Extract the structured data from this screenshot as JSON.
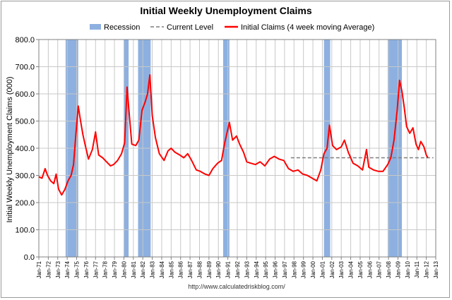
{
  "chart_data": {
    "type": "line",
    "title": "Initial Weekly Unemployment Claims",
    "ylabel": "Initial Weekly Unemployment Claims (000)",
    "xlabel": "",
    "ylim": [
      0,
      800
    ],
    "xlim": [
      "Jan-71",
      "Jan-13"
    ],
    "y_ticks": [
      "0.0",
      "100.0",
      "200.0",
      "300.0",
      "400.0",
      "500.0",
      "600.0",
      "700.0",
      "800.0"
    ],
    "x_ticks": [
      "Jan-71",
      "Jan-72",
      "Jan-73",
      "Jan-74",
      "Jan-75",
      "Jan-76",
      "Jan-77",
      "Jan-78",
      "Jan-79",
      "Jan-80",
      "Jan-81",
      "Jan-82",
      "Jan-83",
      "Jan-84",
      "Jan-85",
      "Jan-86",
      "Jan-87",
      "Jan-88",
      "Jan-89",
      "Jan-90",
      "Jan-91",
      "Jan-92",
      "Jan-93",
      "Jan-94",
      "Jan-95",
      "Jan-96",
      "Jan-97",
      "Jan-98",
      "Jan-99",
      "Jan-00",
      "Jan-01",
      "Jan-02",
      "Jan-03",
      "Jan-04",
      "Jan-05",
      "Jan-06",
      "Jan-07",
      "Jan-08",
      "Jan-09",
      "Jan-10",
      "Jan-11",
      "Jan-12",
      "Jan-13"
    ],
    "grid": true,
    "legend": "top",
    "recession_periods": [
      [
        "1973-11",
        "1975-03"
      ],
      [
        "1980-01",
        "1980-07"
      ],
      [
        "1981-07",
        "1982-11"
      ],
      [
        "1990-07",
        "1991-03"
      ],
      [
        "2001-03",
        "2001-11"
      ],
      [
        "2007-12",
        "2009-06"
      ]
    ],
    "series": [
      {
        "name": "Initial Claims (4 week moving Average)",
        "color": "#ff0000",
        "points": [
          [
            "1971-01",
            295
          ],
          [
            "1971-05",
            290
          ],
          [
            "1971-09",
            325
          ],
          [
            "1971-12",
            300
          ],
          [
            "1972-04",
            280
          ],
          [
            "1972-08",
            270
          ],
          [
            "1972-11",
            305
          ],
          [
            "1973-02",
            250
          ],
          [
            "1973-06",
            228
          ],
          [
            "1973-10",
            248
          ],
          [
            "1974-02",
            280
          ],
          [
            "1974-06",
            300
          ],
          [
            "1974-09",
            340
          ],
          [
            "1974-12",
            450
          ],
          [
            "1975-03",
            555
          ],
          [
            "1975-06",
            500
          ],
          [
            "1975-09",
            450
          ],
          [
            "1975-12",
            410
          ],
          [
            "1976-04",
            360
          ],
          [
            "1976-09",
            395
          ],
          [
            "1977-01",
            460
          ],
          [
            "1977-05",
            375
          ],
          [
            "1977-10",
            365
          ],
          [
            "1978-03",
            350
          ],
          [
            "1978-08",
            335
          ],
          [
            "1978-12",
            340
          ],
          [
            "1979-05",
            355
          ],
          [
            "1979-10",
            380
          ],
          [
            "1980-02",
            420
          ],
          [
            "1980-05",
            625
          ],
          [
            "1980-08",
            520
          ],
          [
            "1980-11",
            415
          ],
          [
            "1981-04",
            410
          ],
          [
            "1981-08",
            430
          ],
          [
            "1981-12",
            540
          ],
          [
            "1982-04",
            570
          ],
          [
            "1982-07",
            600
          ],
          [
            "1982-10",
            670
          ],
          [
            "1983-01",
            520
          ],
          [
            "1983-05",
            440
          ],
          [
            "1983-10",
            380
          ],
          [
            "1984-04",
            355
          ],
          [
            "1984-09",
            390
          ],
          [
            "1985-01",
            400
          ],
          [
            "1985-06",
            385
          ],
          [
            "1985-12",
            375
          ],
          [
            "1986-05",
            365
          ],
          [
            "1986-10",
            380
          ],
          [
            "1987-03",
            355
          ],
          [
            "1987-09",
            320
          ],
          [
            "1988-02",
            315
          ],
          [
            "1988-08",
            305
          ],
          [
            "1989-01",
            300
          ],
          [
            "1989-06",
            325
          ],
          [
            "1989-12",
            345
          ],
          [
            "1990-05",
            355
          ],
          [
            "1990-09",
            420
          ],
          [
            "1991-03",
            495
          ],
          [
            "1991-07",
            430
          ],
          [
            "1991-12",
            445
          ],
          [
            "1992-04",
            415
          ],
          [
            "1992-09",
            385
          ],
          [
            "1993-01",
            350
          ],
          [
            "1993-06",
            345
          ],
          [
            "1993-12",
            340
          ],
          [
            "1994-06",
            350
          ],
          [
            "1994-12",
            335
          ],
          [
            "1995-06",
            360
          ],
          [
            "1995-12",
            370
          ],
          [
            "1996-06",
            360
          ],
          [
            "1996-12",
            355
          ],
          [
            "1997-06",
            325
          ],
          [
            "1997-12",
            315
          ],
          [
            "1998-06",
            320
          ],
          [
            "1998-12",
            305
          ],
          [
            "1999-06",
            300
          ],
          [
            "1999-12",
            290
          ],
          [
            "2000-06",
            280
          ],
          [
            "2000-11",
            320
          ],
          [
            "2001-03",
            380
          ],
          [
            "2001-07",
            400
          ],
          [
            "2001-10",
            485
          ],
          [
            "2002-02",
            410
          ],
          [
            "2002-07",
            395
          ],
          [
            "2003-01",
            405
          ],
          [
            "2003-05",
            430
          ],
          [
            "2003-10",
            385
          ],
          [
            "2004-04",
            345
          ],
          [
            "2004-10",
            335
          ],
          [
            "2005-04",
            320
          ],
          [
            "2005-09",
            395
          ],
          [
            "2005-12",
            330
          ],
          [
            "2006-06",
            320
          ],
          [
            "2006-12",
            315
          ],
          [
            "2007-06",
            315
          ],
          [
            "2007-12",
            340
          ],
          [
            "2008-04",
            365
          ],
          [
            "2008-08",
            430
          ],
          [
            "2008-12",
            540
          ],
          [
            "2009-03",
            650
          ],
          [
            "2009-06",
            610
          ],
          [
            "2009-09",
            550
          ],
          [
            "2009-12",
            480
          ],
          [
            "2010-04",
            455
          ],
          [
            "2010-08",
            475
          ],
          [
            "2010-12",
            415
          ],
          [
            "2011-03",
            395
          ],
          [
            "2011-06",
            425
          ],
          [
            "2011-10",
            405
          ],
          [
            "2012-01",
            375
          ],
          [
            "2012-03",
            365
          ]
        ]
      },
      {
        "name": "Current Level",
        "color": "#7f7f7f",
        "style": "dashed",
        "value": 365,
        "from": "1997-09",
        "to": "2012-10"
      }
    ],
    "legend_items": [
      {
        "label": "Recession",
        "color": "#8db0e0",
        "kind": "box"
      },
      {
        "label": "Current Level",
        "color": "#7f7f7f",
        "kind": "dashed"
      },
      {
        "label": "Initial Claims (4 week moving Average)",
        "color": "#ff0000",
        "kind": "line"
      }
    ]
  },
  "source": "http://www.calculatedriskblog.com/"
}
